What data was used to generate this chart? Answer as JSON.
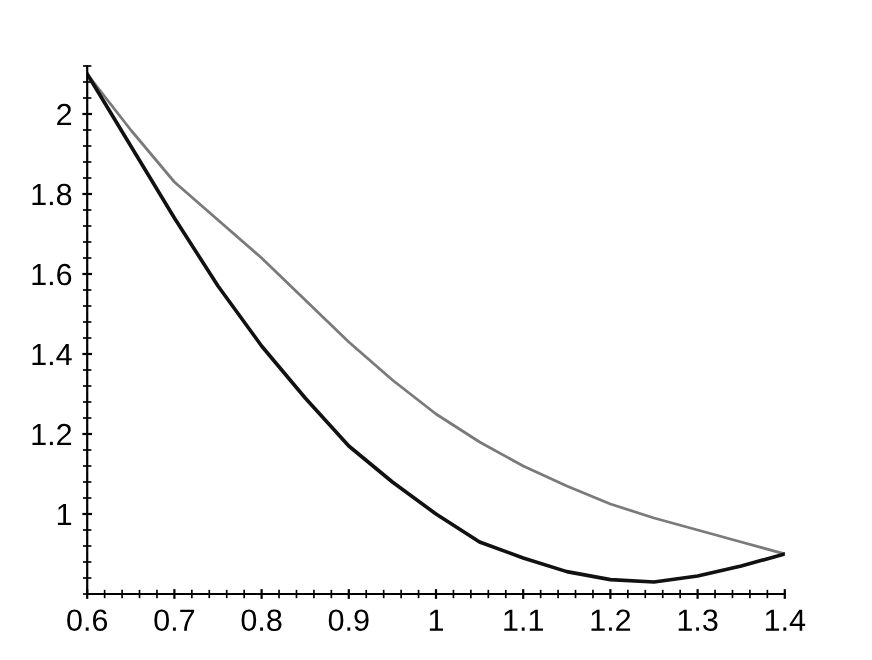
{
  "chart_data": {
    "type": "line",
    "x": [
      0.6,
      0.65,
      0.7,
      0.75,
      0.8,
      0.85,
      0.9,
      0.95,
      1.0,
      1.05,
      1.1,
      1.15,
      1.2,
      1.25,
      1.3,
      1.35,
      1.4
    ],
    "series": [
      {
        "color": "#7a7a7a",
        "values": [
          2.1,
          1.96,
          1.83,
          1.735,
          1.64,
          1.535,
          1.43,
          1.335,
          1.25,
          1.18,
          1.12,
          1.07,
          1.025,
          0.99,
          0.96,
          0.93,
          0.9
        ]
      },
      {
        "color": "#111111",
        "values": [
          2.1,
          1.92,
          1.74,
          1.57,
          1.42,
          1.29,
          1.17,
          1.08,
          1.0,
          0.93,
          0.89,
          0.856,
          0.836,
          0.83,
          0.845,
          0.87,
          0.9
        ]
      }
    ],
    "xlim": [
      0.6,
      1.4
    ],
    "ylim": [
      0.8,
      2.12
    ],
    "xticks": [
      0.6,
      0.7,
      0.8,
      0.9,
      1,
      1.1,
      1.2,
      1.3,
      1.4
    ],
    "yticks": [
      1,
      1.2,
      1.4,
      1.6,
      1.8,
      2
    ],
    "grid": false,
    "marker": "none",
    "line_style": "solid"
  }
}
